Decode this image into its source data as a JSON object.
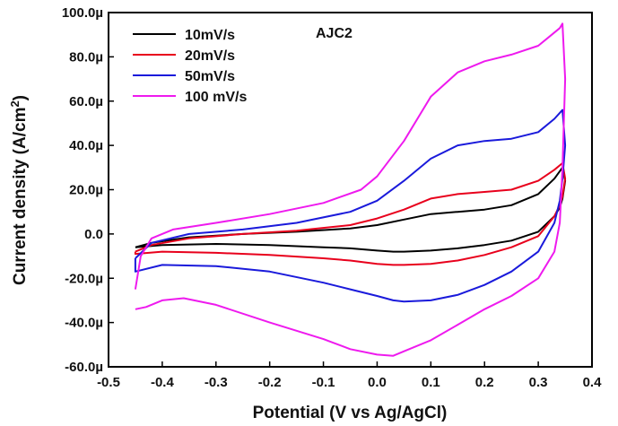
{
  "chart_data": {
    "type": "line",
    "title": "AJC2",
    "xlabel": "Potential (V vs Ag/AgCl)",
    "ylabel_main": "Current density (A/cm",
    "ylabel_sup": "2",
    "ylabel_close": ")",
    "xlim": [
      -0.5,
      0.4
    ],
    "ylim": [
      -6e-05,
      0.0001
    ],
    "x_ticks": [
      -0.5,
      -0.4,
      -0.3,
      -0.2,
      -0.1,
      0.0,
      0.1,
      0.2,
      0.3,
      0.4
    ],
    "x_tick_labels": [
      "-0.5",
      "-0.4",
      "-0.3",
      "-0.2",
      "-0.1",
      "0.0",
      "0.1",
      "0.2",
      "0.3",
      "0.4"
    ],
    "y_ticks": [
      -6e-05,
      -4e-05,
      -2e-05,
      0,
      2e-05,
      4e-05,
      6e-05,
      8e-05,
      0.0001
    ],
    "y_tick_labels": [
      "-60.0µ",
      "-40.0µ",
      "-20.0µ",
      "0.0",
      "20.0µ",
      "40.0µ",
      "60.0µ",
      "80.0µ",
      "100.0µ"
    ],
    "grid": false,
    "legend_position": "top-left",
    "series": [
      {
        "name": "10mV/s",
        "color": "#000000",
        "x": [
          -0.45,
          -0.42,
          -0.35,
          -0.25,
          -0.15,
          -0.05,
          0.0,
          0.05,
          0.1,
          0.15,
          0.2,
          0.25,
          0.3,
          0.33,
          0.345,
          0.35,
          0.345,
          0.34,
          0.33,
          0.3,
          0.25,
          0.2,
          0.15,
          0.1,
          0.05,
          0.03,
          0.0,
          -0.05,
          -0.1,
          -0.2,
          -0.3,
          -0.4,
          -0.45,
          -0.45
        ],
        "y": [
          -6e-06,
          -4e-06,
          -1.5e-06,
          0.0,
          1e-06,
          2.5e-06,
          4e-06,
          6.5e-06,
          9e-06,
          1e-05,
          1.1e-05,
          1.3e-05,
          1.8e-05,
          2.5e-05,
          3e-05,
          2.4e-05,
          1.6e-05,
          1.2e-05,
          8e-06,
          1e-06,
          -3e-06,
          -5e-06,
          -6.5e-06,
          -7.5e-06,
          -8e-06,
          -8e-06,
          -7.5e-06,
          -6.5e-06,
          -6e-06,
          -5e-06,
          -4.5e-06,
          -5e-06,
          -6e-06,
          -6e-06
        ]
      },
      {
        "name": "20mV/s",
        "color": "#e8001c",
        "x": [
          -0.45,
          -0.42,
          -0.35,
          -0.25,
          -0.15,
          -0.05,
          0.0,
          0.05,
          0.1,
          0.15,
          0.2,
          0.25,
          0.3,
          0.33,
          0.345,
          0.35,
          0.345,
          0.34,
          0.33,
          0.3,
          0.25,
          0.2,
          0.15,
          0.1,
          0.05,
          0.03,
          0.0,
          -0.05,
          -0.1,
          -0.2,
          -0.3,
          -0.4,
          -0.45,
          -0.45
        ],
        "y": [
          -8e-06,
          -5e-06,
          -2e-06,
          0.0,
          1.5e-06,
          4e-06,
          7e-06,
          1.1e-05,
          1.6e-05,
          1.8e-05,
          1.9e-05,
          2e-05,
          2.4e-05,
          2.9e-05,
          3.2e-05,
          2.5e-05,
          1.7e-05,
          1.3e-05,
          8e-06,
          -1e-06,
          -6e-06,
          -9.5e-06,
          -1.2e-05,
          -1.35e-05,
          -1.4e-05,
          -1.4e-05,
          -1.35e-05,
          -1.2e-05,
          -1.1e-05,
          -9.5e-06,
          -8.5e-06,
          -8e-06,
          -9e-06,
          -8e-06
        ]
      },
      {
        "name": "50mV/s",
        "color": "#1a1adb",
        "x": [
          -0.45,
          -0.42,
          -0.35,
          -0.25,
          -0.15,
          -0.05,
          0.0,
          0.05,
          0.1,
          0.15,
          0.2,
          0.25,
          0.3,
          0.33,
          0.345,
          0.35,
          0.345,
          0.34,
          0.33,
          0.3,
          0.25,
          0.2,
          0.15,
          0.1,
          0.05,
          0.03,
          0.0,
          -0.05,
          -0.1,
          -0.2,
          -0.3,
          -0.4,
          -0.45,
          -0.45
        ],
        "y": [
          -1.1e-05,
          -4e-06,
          0.0,
          2e-06,
          5e-06,
          1e-05,
          1.5e-05,
          2.4e-05,
          3.4e-05,
          4e-05,
          4.2e-05,
          4.3e-05,
          4.6e-05,
          5.2e-05,
          5.6e-05,
          4e-05,
          2.5e-05,
          1.5e-05,
          5e-06,
          -8e-06,
          -1.7e-05,
          -2.3e-05,
          -2.75e-05,
          -3e-05,
          -3.05e-05,
          -3e-05,
          -2.8e-05,
          -2.5e-05,
          -2.2e-05,
          -1.7e-05,
          -1.45e-05,
          -1.4e-05,
          -1.7e-05,
          -1.1e-05
        ]
      },
      {
        "name": "100 mV/s",
        "color": "#ee1aee",
        "x": [
          -0.45,
          -0.44,
          -0.42,
          -0.38,
          -0.3,
          -0.2,
          -0.1,
          -0.03,
          0.0,
          0.05,
          0.1,
          0.15,
          0.2,
          0.25,
          0.3,
          0.32,
          0.34,
          0.345,
          0.35,
          0.345,
          0.34,
          0.33,
          0.3,
          0.25,
          0.2,
          0.15,
          0.1,
          0.05,
          0.03,
          0.0,
          -0.05,
          -0.1,
          -0.2,
          -0.3,
          -0.36,
          -0.4,
          -0.43,
          -0.45
        ],
        "y": [
          -2.5e-05,
          -1e-05,
          -2e-06,
          2e-06,
          5e-06,
          9e-06,
          1.4e-05,
          2e-05,
          2.6e-05,
          4.2e-05,
          6.2e-05,
          7.3e-05,
          7.8e-05,
          8.1e-05,
          8.5e-05,
          8.9e-05,
          9.3e-05,
          9.5e-05,
          7e-05,
          3e-05,
          5e-06,
          -8e-06,
          -2e-05,
          -2.8e-05,
          -3.4e-05,
          -4.1e-05,
          -4.8e-05,
          -5.3e-05,
          -5.5e-05,
          -5.45e-05,
          -5.2e-05,
          -4.75e-05,
          -4e-05,
          -3.2e-05,
          -2.9e-05,
          -3e-05,
          -3.3e-05,
          -3.4e-05
        ]
      }
    ]
  }
}
